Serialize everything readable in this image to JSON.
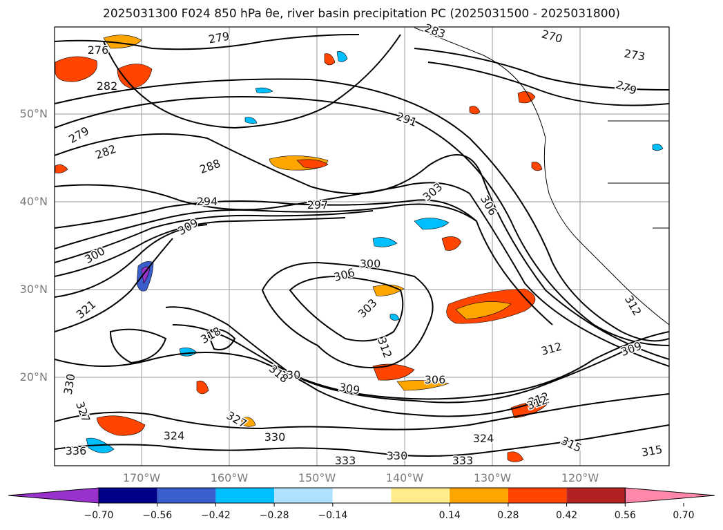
{
  "title": "2025031300 F024 850 hPa θe, river basin precipitation PC (2025031500 - 2025031800)",
  "map": {
    "lat_labels": [
      "50°N",
      "40°N",
      "30°N",
      "20°N"
    ],
    "lon_labels": [
      "170°W",
      "160°W",
      "150°W",
      "140°W",
      "130°W",
      "120°W"
    ],
    "contour_labels": [
      "276",
      "270",
      "273",
      "279",
      "282",
      "279",
      "282",
      "288",
      "291",
      "294",
      "297",
      "303",
      "306",
      "300",
      "309",
      "306",
      "300",
      "303",
      "321",
      "318",
      "312",
      "315",
      "324",
      "330",
      "327",
      "327",
      "330",
      "336",
      "324",
      "330",
      "333",
      "333",
      "330",
      "318",
      "309",
      "312",
      "306",
      "312",
      "309",
      "312",
      "315",
      "312",
      "283",
      "279"
    ]
  },
  "colorbar": {
    "ticks": [
      "−0.70",
      "−0.56",
      "−0.42",
      "−0.28",
      "−0.14",
      "0.14",
      "0.28",
      "0.42",
      "0.56",
      "0.70"
    ],
    "colors": [
      "#9932CC",
      "#00008B",
      "#3A5FCD",
      "#00BFFF",
      "#B0E2FF",
      "#FFFFFF",
      "#FFEC8B",
      "#FFA500",
      "#FF4500",
      "#B22222",
      "#FF88AA"
    ]
  }
}
